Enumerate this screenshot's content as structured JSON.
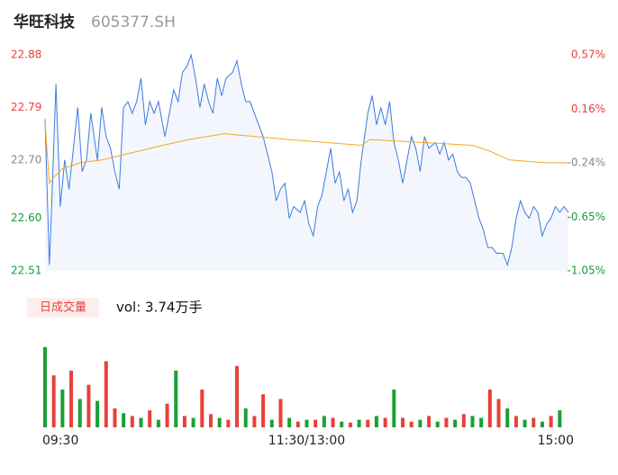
{
  "chart_data": [
    {
      "type": "line",
      "title": "华旺科技",
      "subtitle": "605377.SH",
      "xlim": [
        0,
        240
      ],
      "ylim": [
        22.51,
        22.88
      ],
      "y2lim": [
        -1.05,
        0.57
      ],
      "yticks": [
        22.88,
        22.79,
        {
          "value": 22.7,
          "label": "22.70"
        },
        {
          "value": 22.6,
          "label": "22.60"
        },
        22.51
      ],
      "ytick_colors": [
        "#e8413a",
        "#e8413a",
        "#888888",
        "#1a9a3a",
        "#1a9a3a"
      ],
      "y2ticks": [
        {
          "value": 0.57,
          "label": "0.57%"
        },
        {
          "value": 0.16,
          "label": "0.16%"
        },
        {
          "value": -0.24,
          "label": "-0.24%"
        },
        {
          "value": -0.65,
          "label": "-0.65%"
        },
        {
          "value": -1.05,
          "label": "-1.05%"
        }
      ],
      "area_color": "#f3f6fc",
      "series": [
        {
          "color": "#3b7be0",
          "x": [
            0,
            2,
            3,
            5,
            7,
            9,
            11,
            13,
            15,
            17,
            19,
            21,
            24,
            26,
            28,
            30,
            32,
            34,
            36,
            38,
            40,
            42,
            44,
            46,
            48,
            50,
            52,
            55,
            57,
            59,
            61,
            63,
            65,
            67,
            69,
            71,
            73,
            75,
            77,
            79,
            81,
            83,
            86,
            88,
            90,
            92,
            94,
            96,
            98,
            100,
            102,
            104,
            106,
            108,
            110,
            112,
            114,
            117,
            119,
            121,
            123,
            125,
            127,
            129,
            131,
            133,
            135,
            137,
            139,
            141,
            143,
            145,
            148,
            150,
            152,
            154,
            156,
            158,
            160,
            162,
            164,
            166,
            168,
            170,
            172,
            174,
            176,
            179,
            181,
            183,
            185,
            187,
            189,
            191,
            193,
            195,
            197,
            199,
            201,
            203,
            205,
            207,
            210,
            212,
            214,
            216,
            218,
            220,
            222,
            224,
            226,
            228,
            230,
            232,
            234,
            236,
            238,
            240
          ],
          "values": [
            22.77,
            22.52,
            22.62,
            22.83,
            22.62,
            22.7,
            22.65,
            22.72,
            22.79,
            22.68,
            22.7,
            22.78,
            22.7,
            22.79,
            22.74,
            22.72,
            22.68,
            22.65,
            22.79,
            22.8,
            22.78,
            22.8,
            22.84,
            22.76,
            22.8,
            22.78,
            22.8,
            22.74,
            22.78,
            22.82,
            22.8,
            22.85,
            22.86,
            22.88,
            22.84,
            22.79,
            22.83,
            22.8,
            22.78,
            22.84,
            22.81,
            22.84,
            22.85,
            22.87,
            22.83,
            22.8,
            22.8,
            22.78,
            22.76,
            22.74,
            22.71,
            22.68,
            22.63,
            22.65,
            22.66,
            22.6,
            22.62,
            22.61,
            22.63,
            22.59,
            22.57,
            22.62,
            22.64,
            22.68,
            22.72,
            22.66,
            22.68,
            22.63,
            22.65,
            22.61,
            22.63,
            22.7,
            22.78,
            22.81,
            22.76,
            22.79,
            22.76,
            22.8,
            22.73,
            22.7,
            22.66,
            22.7,
            22.74,
            22.72,
            22.68,
            22.74,
            22.72,
            22.73,
            22.71,
            22.73,
            22.7,
            22.71,
            22.68,
            22.67,
            22.67,
            22.66,
            22.63,
            22.6,
            22.58,
            22.55,
            22.55,
            22.54,
            22.54,
            22.52,
            22.55,
            22.6,
            22.63,
            22.61,
            22.6,
            22.62,
            22.61,
            22.57,
            22.59,
            22.6,
            22.62,
            22.61,
            22.62,
            22.61
          ]
        },
        {
          "color": "#f5a623",
          "x": [
            0,
            2,
            4,
            8,
            16,
            26,
            43,
            54,
            66,
            82,
            112,
            145,
            149,
            196,
            204,
            213,
            230,
            240
          ],
          "values": [
            22.765,
            22.66,
            22.67,
            22.685,
            22.695,
            22.7,
            22.715,
            22.725,
            22.735,
            22.745,
            22.735,
            22.725,
            22.735,
            22.725,
            22.715,
            22.7,
            22.695,
            22.695
          ]
        }
      ]
    },
    {
      "type": "bar",
      "title": "日成交量",
      "annotation": "vol: 3.74万手",
      "xlim": [
        0,
        240
      ],
      "ylim": [
        0,
        100
      ],
      "xticks": [
        {
          "value": 0,
          "label": "09:30"
        },
        {
          "value": 120,
          "label": "11:30/13:00"
        },
        {
          "value": 240,
          "label": "15:00"
        }
      ],
      "up_color": "#e8413a",
      "down_color": "#1aa035",
      "x": [
        0,
        4,
        8,
        12,
        16,
        20,
        24,
        28,
        32,
        36,
        40,
        44,
        48,
        52,
        56,
        60,
        64,
        68,
        72,
        76,
        80,
        84,
        88,
        92,
        96,
        100,
        104,
        108,
        112,
        116,
        120,
        124,
        128,
        132,
        136,
        140,
        144,
        148,
        152,
        156,
        160,
        164,
        168,
        172,
        176,
        180,
        184,
        188,
        192,
        196,
        200,
        204,
        208,
        212,
        216,
        220,
        224,
        228,
        232,
        236
      ],
      "values": [
        85,
        55,
        40,
        60,
        30,
        45,
        28,
        70,
        20,
        15,
        12,
        10,
        18,
        8,
        25,
        60,
        12,
        10,
        40,
        14,
        10,
        8,
        65,
        20,
        12,
        35,
        8,
        30,
        10,
        6,
        8,
        8,
        12,
        10,
        6,
        5,
        8,
        8,
        12,
        10,
        40,
        10,
        6,
        8,
        12,
        6,
        10,
        8,
        14,
        12,
        10,
        40,
        30,
        20,
        12,
        8,
        10,
        6,
        12,
        18
      ],
      "up": [
        false,
        true,
        false,
        true,
        false,
        true,
        false,
        true,
        true,
        false,
        true,
        false,
        true,
        false,
        true,
        false,
        true,
        false,
        true,
        true,
        false,
        true,
        true,
        false,
        true,
        true,
        false,
        true,
        false,
        true,
        false,
        true,
        false,
        true,
        false,
        true,
        false,
        true,
        false,
        true,
        false,
        true,
        true,
        false,
        true,
        false,
        true,
        false,
        true,
        false,
        false,
        true,
        true,
        false,
        true,
        false,
        true,
        false,
        true,
        false
      ]
    }
  ]
}
